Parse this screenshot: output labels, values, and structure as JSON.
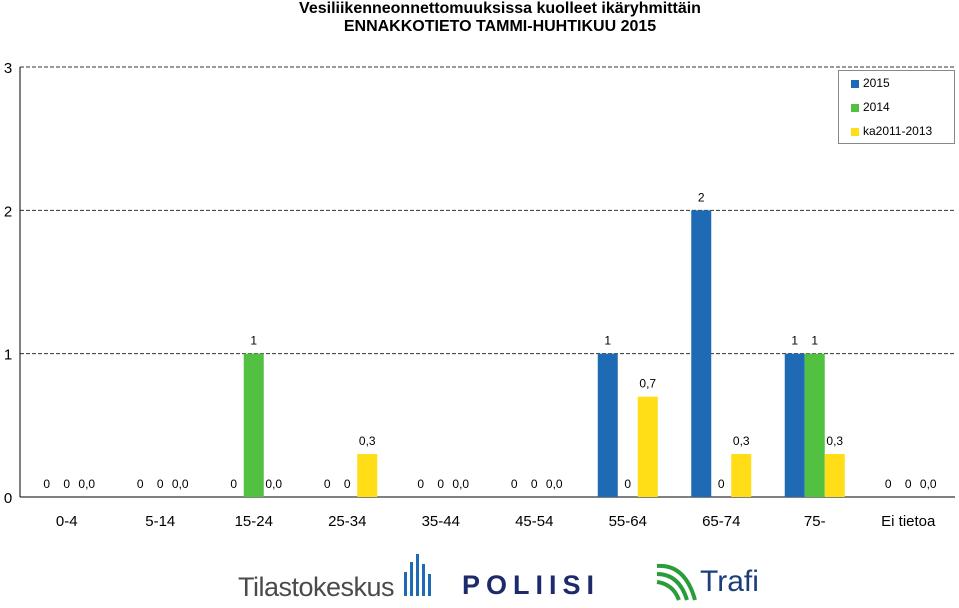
{
  "chart_data": {
    "type": "bar",
    "title": "Vesiliikenneonnettomuuksissa kuolleet ikäryhmittäin",
    "subtitle": "ENNAKKOTIETO TAMMI-HUHTIKUU 2015",
    "categories": [
      "0-4",
      "5-14",
      "15-24",
      "25-34",
      "35-44",
      "45-54",
      "55-64",
      "65-74",
      "75-",
      "Ei tietoa"
    ],
    "ylim": [
      0,
      3
    ],
    "yticks": [
      "0",
      "1",
      "2",
      "3"
    ],
    "grid": true,
    "legend_position": "top-right",
    "series": [
      {
        "name": "2015",
        "color": "#1f6ab4",
        "values": [
          0,
          0,
          0,
          0,
          0,
          0,
          1,
          2,
          1,
          0
        ],
        "labels": [
          "0",
          "0",
          "0",
          "0",
          "0",
          "0",
          "1",
          "2",
          "1",
          "0"
        ]
      },
      {
        "name": "2014",
        "color": "#52c041",
        "values": [
          0,
          0,
          1,
          0,
          0,
          0,
          0,
          0,
          1,
          0
        ],
        "labels": [
          "0",
          "0",
          "1",
          "0",
          "0",
          "0",
          "0",
          "0",
          "1",
          "0"
        ]
      },
      {
        "name": "ka2011-2013",
        "color": "#ffde17",
        "values": [
          0,
          0,
          0,
          0.3,
          0,
          0,
          0.7,
          0.3,
          0.3,
          0
        ],
        "labels": [
          "0,0",
          "0,0",
          "0,0",
          "0,3",
          "0,0",
          "0,0",
          "0,7",
          "0,3",
          "0,3",
          "0,0"
        ]
      }
    ]
  },
  "logos": {
    "tilastokeskus": "Tilastokeskus",
    "poliisi": "POLIISI",
    "trafi": "Trafi"
  }
}
